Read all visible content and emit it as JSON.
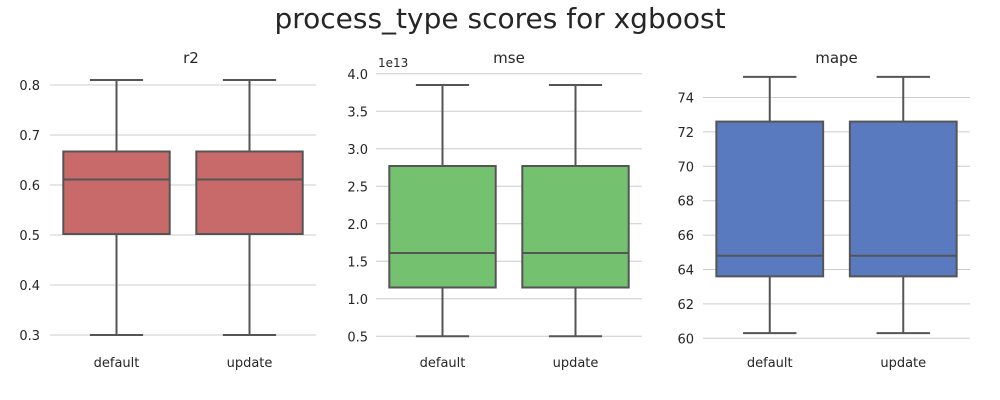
{
  "title": "process_type scores for xgboost",
  "chart_data": [
    {
      "type": "box",
      "title": "r2",
      "categories": [
        "default",
        "update"
      ],
      "color": "#c96a6a",
      "ylim": [
        0.29,
        0.83
      ],
      "yticks": [
        0.3,
        0.4,
        0.5,
        0.6,
        0.7,
        0.8
      ],
      "ytick_labels": [
        "0.3",
        "0.4",
        "0.5",
        "0.6",
        "0.7",
        "0.8"
      ],
      "offset_label": "",
      "boxes": [
        {
          "name": "default",
          "whislo": 0.3,
          "q1": 0.502,
          "med": 0.611,
          "q3": 0.667,
          "whishi": 0.81
        },
        {
          "name": "update",
          "whislo": 0.3,
          "q1": 0.502,
          "med": 0.611,
          "q3": 0.667,
          "whishi": 0.81
        }
      ]
    },
    {
      "type": "box",
      "title": "mse",
      "categories": [
        "default",
        "update"
      ],
      "color": "#74c16f",
      "ylim": [
        0.45,
        4.05
      ],
      "yticks": [
        0.5,
        1.0,
        1.5,
        2.0,
        2.5,
        3.0,
        3.5,
        4.0
      ],
      "ytick_labels": [
        "0.5",
        "1.0",
        "1.5",
        "2.0",
        "2.5",
        "3.0",
        "3.5",
        "4.0"
      ],
      "offset_label": "1e13",
      "boxes": [
        {
          "name": "default",
          "whislo": 0.5,
          "q1": 1.15,
          "med": 1.61,
          "q3": 2.77,
          "whishi": 3.85
        },
        {
          "name": "update",
          "whislo": 0.5,
          "q1": 1.15,
          "med": 1.61,
          "q3": 2.77,
          "whishi": 3.85
        }
      ]
    },
    {
      "type": "box",
      "title": "mape",
      "categories": [
        "default",
        "update"
      ],
      "color": "#5a7ac0",
      "ylim": [
        59.9,
        75.6
      ],
      "yticks": [
        60,
        62,
        64,
        66,
        68,
        70,
        72,
        74
      ],
      "ytick_labels": [
        "60",
        "62",
        "64",
        "66",
        "68",
        "70",
        "72",
        "74"
      ],
      "offset_label": "",
      "boxes": [
        {
          "name": "default",
          "whislo": 60.3,
          "q1": 63.6,
          "med": 64.8,
          "q3": 72.6,
          "whishi": 75.2
        },
        {
          "name": "update",
          "whislo": 60.3,
          "q1": 63.6,
          "med": 64.8,
          "q3": 72.6,
          "whishi": 75.2
        }
      ]
    }
  ]
}
